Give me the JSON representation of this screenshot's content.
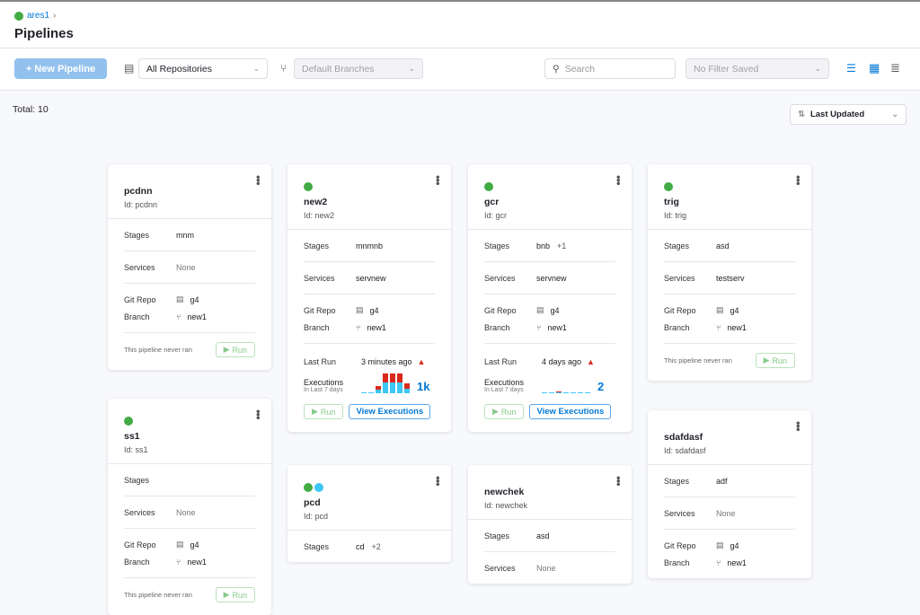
{
  "breadcrumb": {
    "project": "ares1"
  },
  "header": {
    "title": "Pipelines"
  },
  "toolbar": {
    "new_pipeline": "+ New Pipeline",
    "repositories": "All Repositories",
    "branches": "Default Branches",
    "search_placeholder": "Search",
    "filter": "No Filter Saved"
  },
  "total": "Total: 10",
  "sort": "Last Updated",
  "labels": {
    "stages": "Stages",
    "services": "Services",
    "git_repo": "Git Repo",
    "branch": "Branch",
    "last_run": "Last Run",
    "executions": "Executions",
    "in_last_7_days": "In Last 7 days",
    "never_ran": "This pipeline never ran",
    "run": "Run",
    "view_executions": "View Executions"
  },
  "colors": {
    "accent": "#0278d5",
    "success": "#3dc7f6",
    "failed": "#da291d",
    "run_green": "#42ab45"
  },
  "cards": [
    {
      "name": "pcdnn",
      "id": "Id: pcdnn",
      "icons": [],
      "stages": "mnm",
      "services": "None",
      "git_repo": "g4",
      "branch": "new1",
      "never_ran": true
    },
    {
      "name": "ss1",
      "id": "Id: ss1",
      "icons": [
        "green"
      ],
      "stages": "",
      "services": "None",
      "git_repo": "g4",
      "branch": "new1",
      "never_ran": true
    },
    {
      "name": "new2",
      "id": "Id: new2",
      "icons": [
        "green"
      ],
      "stages": "mnmnb",
      "services": "servnew",
      "git_repo": "g4",
      "branch": "new1",
      "last_run": "3 minutes ago",
      "executions_count": "1k",
      "executions": {
        "success": [
          0,
          0,
          4,
          11,
          11,
          11,
          5
        ],
        "failed": [
          0,
          0,
          3,
          9,
          9,
          9,
          5
        ]
      }
    },
    {
      "name": "pcd",
      "id": "Id: pcd",
      "icons": [
        "green",
        "blue"
      ],
      "stages": "cd",
      "stages_more": "+2"
    },
    {
      "name": "gcr",
      "id": "Id: gcr",
      "icons": [
        "green"
      ],
      "stages": "bnb",
      "stages_more": "+1",
      "services": "servnew",
      "git_repo": "g4",
      "branch": "new1",
      "last_run": "4 days ago",
      "executions_count": "2",
      "executions": {
        "success": [
          0,
          0,
          1,
          0,
          0,
          0,
          0
        ],
        "failed": [
          0,
          0,
          1,
          0,
          0,
          0,
          0
        ]
      }
    },
    {
      "name": "newchek",
      "id": "Id: newchek",
      "icons": [],
      "stages": "asd",
      "services": "None"
    },
    {
      "name": "trig",
      "id": "Id: trig",
      "icons": [
        "green"
      ],
      "stages": "asd",
      "services": "testserv",
      "git_repo": "g4",
      "branch": "new1",
      "never_ran": true
    },
    {
      "name": "sdafdasf",
      "id": "Id: sdafdasf",
      "icons": [],
      "stages": "adf",
      "services": "None",
      "git_repo": "g4",
      "branch": "new1"
    }
  ]
}
